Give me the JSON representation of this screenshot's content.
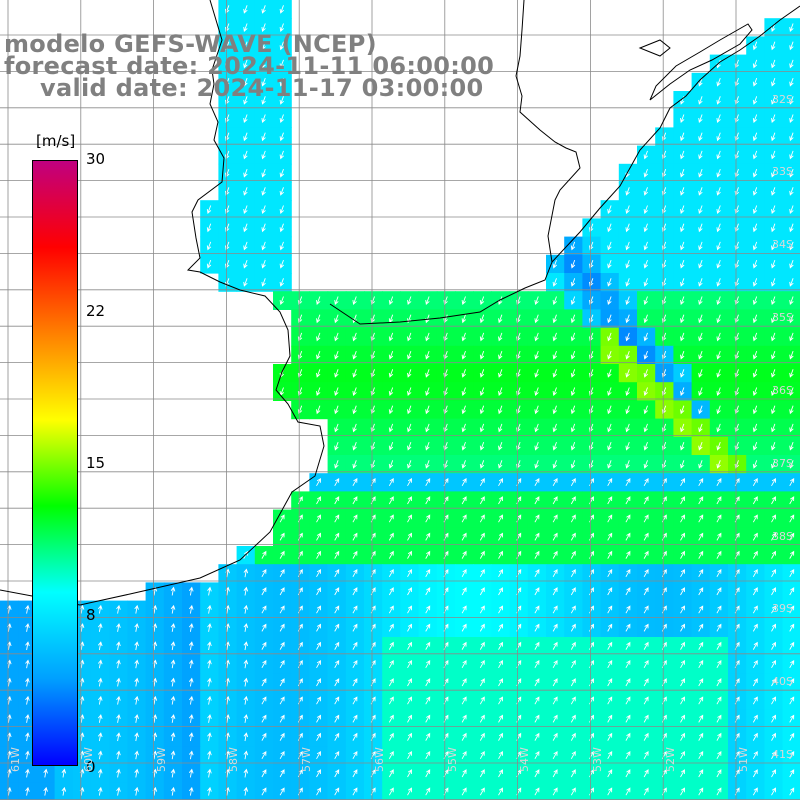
{
  "header": {
    "model_line": "modelo GEFS-WAVE (NCEP)",
    "forecast_line": "forecast date: 2024-11-11 06:00:00",
    "valid_line": "valid date: 2024-11-17 03:00:00"
  },
  "colorbar": {
    "unit": "[m/s]",
    "ticks": [
      "30",
      "22",
      "15",
      "8",
      "0"
    ],
    "tick_values": [
      30,
      22,
      15,
      8,
      0
    ],
    "min": 0,
    "max": 30,
    "colors": [
      "#0000ff",
      "#00a0ff",
      "#00ffff",
      "#00ff00",
      "#ffff00",
      "#ff8000",
      "#ff0000",
      "#c00080"
    ]
  },
  "lat_labels": [
    "32S",
    "33S",
    "34S",
    "35S",
    "36S",
    "37S",
    "38S",
    "39S",
    "40S",
    "41S"
  ],
  "lon_labels": [
    "61W",
    "60W",
    "59W",
    "58W",
    "57W",
    "56W",
    "55W",
    "54W",
    "53W",
    "52W",
    "51W"
  ],
  "colors": {
    "land": "#ffffff",
    "coast": "#000000",
    "grid": "#8a8a8a",
    "arrow": "#ffffff",
    "header_text": "#808080"
  }
}
